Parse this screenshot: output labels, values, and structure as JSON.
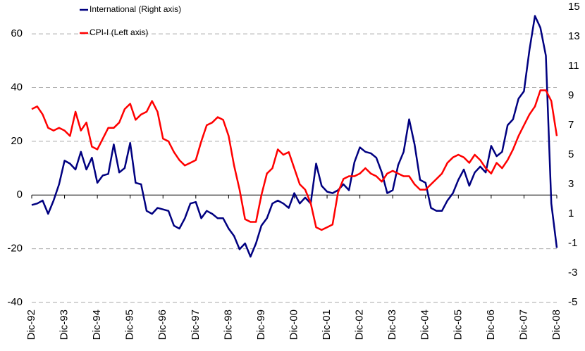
{
  "chart_data": {
    "type": "line",
    "categories": [
      "Dic-92",
      null,
      null,
      null,
      null,
      null,
      "Dic-93",
      null,
      null,
      null,
      null,
      null,
      "Dic-94",
      null,
      null,
      null,
      null,
      null,
      "Dic-95",
      null,
      null,
      null,
      null,
      null,
      "Dic-96",
      null,
      null,
      null,
      null,
      null,
      "Dic-97",
      null,
      null,
      null,
      null,
      null,
      "Dic-98",
      null,
      null,
      null,
      null,
      null,
      "Dic-99",
      null,
      null,
      null,
      null,
      null,
      "Dic-00",
      null,
      null,
      null,
      null,
      null,
      "Dic-01",
      null,
      null,
      null,
      null,
      null,
      "Dic-02",
      null,
      null,
      null,
      null,
      null,
      "Dic-03",
      null,
      null,
      null,
      null,
      null,
      "Dic-04",
      null,
      null,
      null,
      null,
      null,
      "Dic-05",
      null,
      null,
      null,
      null,
      null,
      "Dic-06",
      null,
      null,
      null,
      null,
      null,
      "Dic-07",
      null,
      null,
      null,
      null,
      null,
      "Dic-08"
    ],
    "series": [
      {
        "name": "International (Right axis)",
        "color": "#000080",
        "axis": "y2",
        "values": [
          1.6,
          1.7,
          1.9,
          1.0,
          1.9,
          3.0,
          4.6,
          4.4,
          4.0,
          5.2,
          4.0,
          4.8,
          3.1,
          3.6,
          3.7,
          5.7,
          3.8,
          4.1,
          5.8,
          3.1,
          3.0,
          1.2,
          1.0,
          1.4,
          1.3,
          1.2,
          0.2,
          0.0,
          0.7,
          1.7,
          1.8,
          0.7,
          1.2,
          1.0,
          0.7,
          0.7,
          0.0,
          -0.5,
          -1.4,
          -1.0,
          -1.9,
          -1.0,
          0.2,
          0.7,
          1.7,
          1.9,
          1.7,
          1.4,
          2.4,
          1.7,
          2.1,
          1.7,
          4.4,
          2.9,
          2.5,
          2.4,
          2.6,
          3.0,
          2.6,
          4.5,
          5.5,
          5.2,
          5.1,
          4.8,
          3.8,
          2.4,
          2.6,
          4.3,
          5.2,
          7.4,
          5.7,
          3.3,
          3.1,
          1.4,
          1.2,
          1.2,
          1.9,
          2.4,
          3.3,
          4.0,
          2.9,
          3.8,
          4.2,
          3.8,
          5.6,
          4.9,
          5.2,
          7.0,
          7.4,
          8.8,
          9.3,
          12.1,
          14.4,
          13.6,
          11.7,
          1.7,
          -1.3
        ]
      },
      {
        "name": "CPI-I (Left axis)",
        "color": "#ff0000",
        "values": [
          32,
          33,
          30,
          25,
          24,
          25,
          24,
          22,
          31,
          24,
          27,
          18,
          17,
          21,
          25,
          25,
          27,
          32,
          34,
          28,
          30,
          31,
          35,
          31,
          21,
          20,
          16,
          13,
          11,
          12,
          13,
          20,
          26,
          27,
          29,
          28,
          22,
          11,
          2,
          -9,
          -10,
          -10,
          0,
          8,
          10,
          17,
          15,
          16,
          10,
          4,
          2,
          -3,
          -12,
          -13,
          -12,
          -11,
          1,
          6,
          7,
          7,
          8,
          10,
          8,
          7,
          5,
          8,
          9,
          8,
          7,
          7,
          4,
          2,
          2,
          4,
          6,
          8,
          12,
          14,
          15,
          14,
          12,
          15,
          13,
          10,
          8,
          12,
          10,
          13,
          17,
          22,
          26,
          30,
          33,
          39,
          39,
          35,
          22
        ]
      }
    ],
    "ylim": [
      -40,
      70
    ],
    "yticks": [
      -40,
      -20,
      0,
      20,
      40,
      60
    ],
    "y2lim": [
      -5,
      15
    ],
    "y2ticks": [
      -5,
      -3,
      -1,
      1,
      3,
      5,
      7,
      9,
      11,
      13,
      15
    ],
    "grid": true,
    "legend": "top-left"
  }
}
